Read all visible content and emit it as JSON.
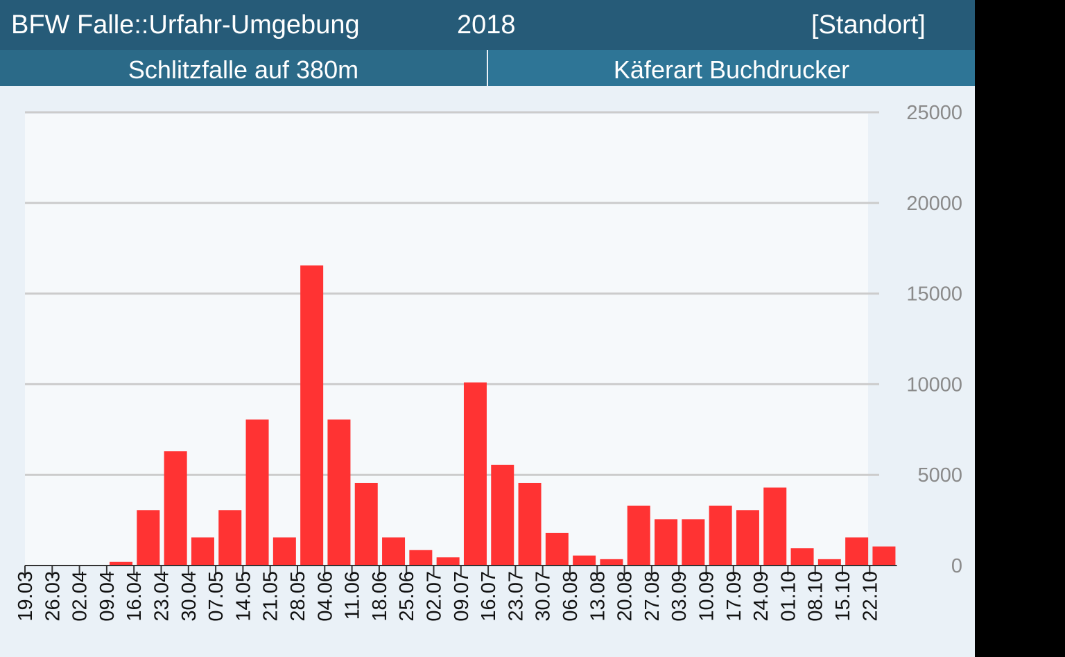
{
  "header": {
    "title": "BFW Falle::Urfahr-Umgebung",
    "year": "2018",
    "location": "[Standort]",
    "trap": "Schlitzfalle auf 380m",
    "species": "Käferart Buchdrucker"
  },
  "colors": {
    "bar": "#ff3333",
    "title_bg": "#265b78",
    "sub_left_bg": "#2b6a88",
    "sub_right_bg": "#2e7596",
    "grid": "#cccccc"
  },
  "chart_data": {
    "type": "bar",
    "categories": [
      "19.03",
      "26.03",
      "02.04",
      "09.04",
      "16.04",
      "23.04",
      "30.04",
      "07.05",
      "14.05",
      "21.05",
      "28.05",
      "04.06",
      "11.06",
      "18.06",
      "25.06",
      "02.07",
      "09.07",
      "16.07",
      "23.07",
      "30.07",
      "06.08",
      "13.08",
      "20.08",
      "27.08",
      "03.09",
      "10.09",
      "17.09",
      "24.09",
      "01.10",
      "08.10",
      "15.10",
      "22.10"
    ],
    "values": [
      0,
      0,
      0,
      200,
      3050,
      6300,
      1550,
      3050,
      8050,
      1550,
      16550,
      8050,
      4550,
      1550,
      850,
      450,
      10100,
      5550,
      4550,
      1800,
      550,
      350,
      3300,
      2550,
      2550,
      3300,
      3050,
      4300,
      950,
      350,
      1550,
      1050
    ],
    "ylim": [
      0,
      25000
    ],
    "yticks": [
      0,
      5000,
      10000,
      15000,
      20000,
      25000
    ],
    "y_axis_position": "right",
    "grid": true,
    "legend": "none"
  }
}
